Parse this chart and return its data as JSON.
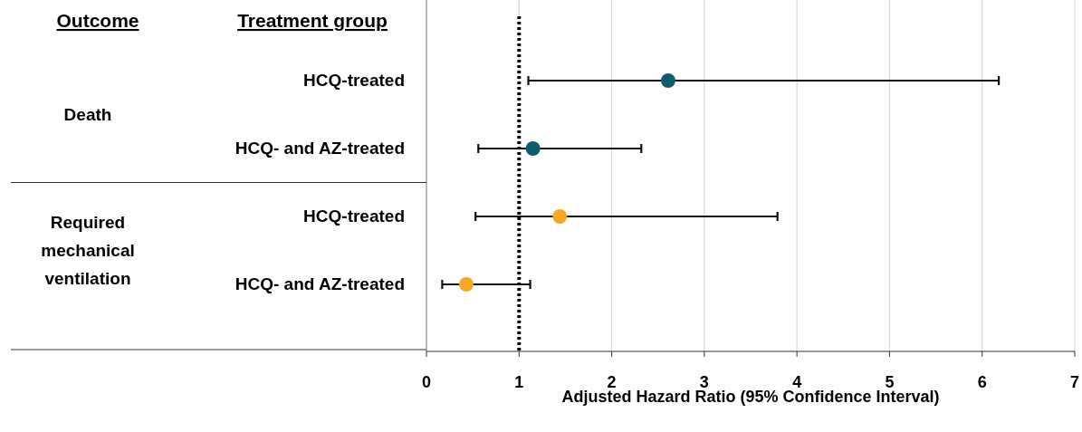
{
  "chart_data": {
    "type": "scatter",
    "orientation": "horizontal",
    "ylabel": "Treatment group",
    "xlabel": "Adjusted Hazard Ratio (95% Confidence Interval)",
    "categories": [
      "HCQ-treated",
      "HCQ- and AZ-treated",
      "HCQ-treated",
      "HCQ- and AZ-treated"
    ],
    "series": [
      {
        "color": "#0d5c6e",
        "values": [
          2.61,
          1.15,
          null,
          null
        ],
        "errors": [
          [
            1.1,
            6.18
          ],
          [
            0.56,
            2.32
          ],
          null,
          null
        ]
      },
      {
        "color": "#f7a823",
        "values": [
          null,
          null,
          1.44,
          0.43
        ],
        "errors": [
          null,
          null,
          [
            0.53,
            3.79
          ],
          [
            0.17,
            1.12
          ]
        ]
      }
    ],
    "annotations": [
      "Outcome",
      "Death",
      "Required mechanical ventilation"
    ],
    "xlim": [
      0,
      7
    ],
    "xticks": [
      0,
      1,
      2,
      3,
      4,
      5,
      6,
      7
    ],
    "grid": "x",
    "marker": "circle",
    "ref_lines": [
      {
        "axis": "x",
        "value": 1,
        "line_style": "dotted",
        "color": "#000000"
      }
    ]
  }
}
